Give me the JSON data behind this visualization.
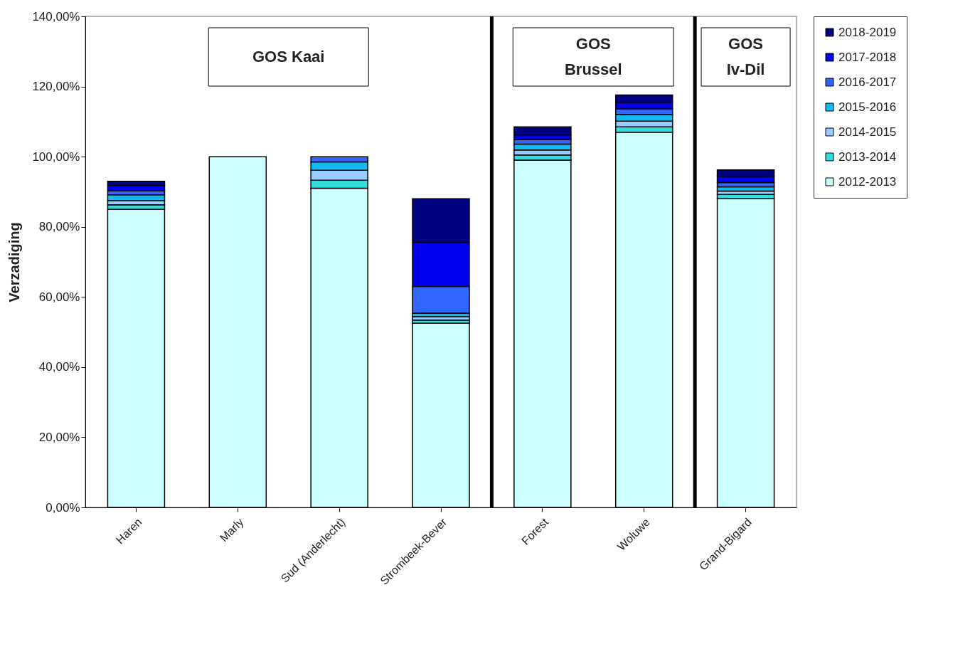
{
  "chart_data": {
    "type": "bar",
    "stacked": true,
    "ylabel": "Verzadiging",
    "categories": [
      "Haren",
      "Marly",
      "Sud (Anderlecht)",
      "Strombeek-Bever",
      "Forest",
      "Woluwe",
      "Grand-Bigard"
    ],
    "series": [
      {
        "name": "2012-2013",
        "color": "#ccffff",
        "values": [
          85,
          100,
          91,
          52.5,
          99,
          107,
          88
        ]
      },
      {
        "name": "2013-2014",
        "color": "#33dddd",
        "values": [
          1.3,
          null,
          2.3,
          0.9,
          1.5,
          1.5,
          1.2
        ]
      },
      {
        "name": "2014-2015",
        "color": "#99ccff",
        "values": [
          1.2,
          null,
          2.8,
          1.0,
          1.4,
          1.6,
          1.0
        ]
      },
      {
        "name": "2015-2016",
        "color": "#11bbee",
        "values": [
          1.6,
          null,
          2.4,
          1.0,
          1.7,
          1.9,
          1.2
        ]
      },
      {
        "name": "2016-2017",
        "color": "#3366ff",
        "values": [
          1.2,
          null,
          1.5,
          7.6,
          1.3,
          1.6,
          1.2
        ]
      },
      {
        "name": "2017-2018",
        "color": "#0000ee",
        "values": [
          1.5,
          null,
          null,
          12.6,
          1.3,
          1.9,
          1.8
        ]
      },
      {
        "name": "2018-2019",
        "color": "#000080",
        "values": [
          1.2,
          null,
          null,
          12.4,
          2.3,
          2.1,
          1.8
        ]
      }
    ],
    "ylim": [
      0,
      140
    ],
    "yticks": [
      {
        "value": 0,
        "label": "0,00%"
      },
      {
        "value": 20,
        "label": "20,00%"
      },
      {
        "value": 40,
        "label": "40,00%"
      },
      {
        "value": 60,
        "label": "60,00%"
      },
      {
        "value": 80,
        "label": "80,00%"
      },
      {
        "value": 100,
        "label": "100,00%"
      },
      {
        "value": 120,
        "label": "120,00%"
      },
      {
        "value": 140,
        "label": "140,00%"
      }
    ],
    "annotations": [
      "GOS Kaai",
      "GOS Brussel",
      "GOS Iv-Dil"
    ],
    "grid": false,
    "legend": "right"
  }
}
